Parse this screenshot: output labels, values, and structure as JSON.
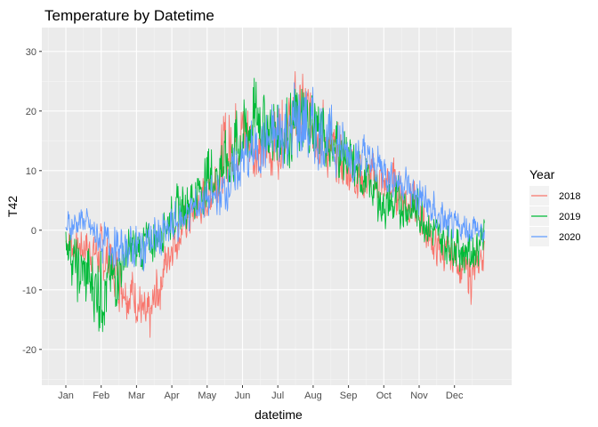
{
  "chart_data": {
    "type": "line",
    "title": "Temperature by Datetime",
    "xlabel": "datetime",
    "ylabel": "T42",
    "legend_title": "Year",
    "legend_position": "right",
    "grid": true,
    "xlim": [
      0,
      12.4
    ],
    "ylim": [
      -26,
      34
    ],
    "x_ticks": [
      {
        "label": "Jan",
        "value": 0
      },
      {
        "label": "Feb",
        "value": 1
      },
      {
        "label": "Mar",
        "value": 2
      },
      {
        "label": "Apr",
        "value": 3
      },
      {
        "label": "May",
        "value": 4
      },
      {
        "label": "Jun",
        "value": 5
      },
      {
        "label": "Jul",
        "value": 6
      },
      {
        "label": "Aug",
        "value": 7
      },
      {
        "label": "Sep",
        "value": 8
      },
      {
        "label": "Oct",
        "value": 9
      },
      {
        "label": "Nov",
        "value": 10
      },
      {
        "label": "Dec",
        "value": 11
      }
    ],
    "y_ticks": [
      -20,
      -10,
      0,
      10,
      20,
      30
    ],
    "series": [
      {
        "name": "2018",
        "color": "#F8766D",
        "x": [
          0,
          0.5,
          1,
          1.5,
          2,
          2.3,
          2.6,
          3,
          3.5,
          4,
          4.5,
          5,
          5.5,
          6,
          6.5,
          7,
          7.5,
          8,
          8.5,
          9,
          9.5,
          10,
          10.5,
          11,
          11.5,
          11.85
        ],
        "y": [
          -2,
          -3,
          -4,
          -8,
          -12,
          -16,
          -10,
          -2,
          2,
          5,
          12,
          16,
          12,
          14,
          20,
          18,
          12,
          10,
          8,
          8,
          6,
          2,
          -4,
          -5,
          -8,
          -3
        ],
        "low": [
          -6,
          -8,
          -11,
          -15,
          -18,
          -23,
          -17,
          -8,
          -3,
          0,
          4,
          7,
          4,
          7,
          10,
          9,
          5,
          4,
          3,
          2,
          1,
          -4,
          -8,
          -9,
          -15,
          -7
        ],
        "high": [
          2,
          2,
          3,
          -1,
          -5,
          -9,
          -3,
          4,
          7,
          12,
          24,
          27,
          22,
          26,
          30,
          29,
          22,
          18,
          15,
          15,
          14,
          9,
          2,
          0,
          -1,
          0
        ]
      },
      {
        "name": "2019",
        "color": "#00BA38",
        "x": [
          0,
          0.3,
          0.8,
          1,
          1.3,
          1.6,
          2,
          2.5,
          3,
          3.5,
          4,
          4.5,
          5,
          5.5,
          6,
          6.5,
          7,
          7.5,
          8,
          8.5,
          9,
          9.5,
          10,
          10.5,
          11,
          11.5,
          11.85
        ],
        "y": [
          -1,
          -6,
          -10,
          -8,
          -9,
          -5,
          -3,
          -1,
          2,
          4,
          7,
          10,
          14,
          18,
          15,
          16,
          17,
          14,
          11,
          8,
          4,
          4,
          3,
          -1,
          -2,
          -3,
          0
        ],
        "low": [
          -5,
          -16,
          -20,
          -22,
          -19,
          -13,
          -10,
          -7,
          -3,
          -1,
          2,
          4,
          7,
          10,
          7,
          9,
          10,
          7,
          5,
          3,
          -2,
          -2,
          -3,
          -6,
          -8,
          -11,
          -4
        ],
        "high": [
          2,
          0,
          2,
          1,
          -1,
          2,
          3,
          4,
          8,
          12,
          17,
          21,
          26,
          31,
          26,
          28,
          28,
          24,
          19,
          15,
          11,
          11,
          10,
          4,
          2,
          1,
          4
        ]
      },
      {
        "name": "2020",
        "color": "#619CFF",
        "x": [
          0,
          0.5,
          1,
          1.5,
          2,
          2.5,
          3,
          3.5,
          4,
          4.5,
          5,
          5.5,
          6,
          6.5,
          7,
          7.5,
          8,
          8.5,
          9,
          9.5,
          10,
          10.5,
          11,
          11.5,
          11.85
        ],
        "y": [
          0,
          2,
          -2,
          -3,
          -3,
          -2,
          0,
          3,
          5,
          6,
          11,
          13,
          14,
          15,
          15,
          14,
          12,
          11,
          10,
          8,
          5,
          2,
          0,
          0,
          -1
        ],
        "low": [
          -3,
          -2,
          -7,
          -8,
          -9,
          -8,
          -5,
          -2,
          0,
          1,
          5,
          7,
          8,
          9,
          9,
          8,
          7,
          6,
          5,
          3,
          0,
          -3,
          -4,
          -3,
          -4
        ],
        "high": [
          5,
          5,
          3,
          2,
          3,
          4,
          6,
          8,
          10,
          13,
          20,
          22,
          26,
          30,
          27,
          24,
          20,
          18,
          15,
          14,
          11,
          8,
          4,
          5,
          3
        ]
      }
    ]
  }
}
